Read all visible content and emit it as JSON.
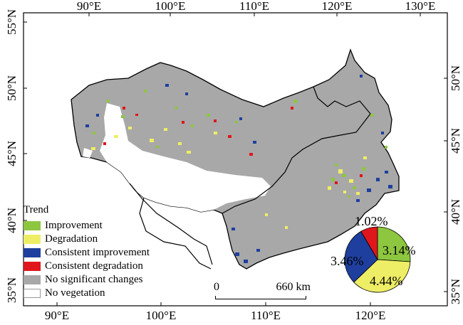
{
  "axes": {
    "top_lon_labels": [
      "90°E",
      "100°E",
      "110°E",
      "120°E",
      "130°E"
    ],
    "bottom_lon_labels": [
      "90°E",
      "100°E",
      "110°E",
      "120°E"
    ],
    "left_lat_labels": [
      "55°N",
      "50°N",
      "45°N",
      "40°N",
      "35°N"
    ],
    "right_lat_labels": [
      "50°N",
      "45°N",
      "40°N",
      "35°N"
    ]
  },
  "legend": {
    "title": "Trend",
    "items": [
      {
        "label": "Improvement",
        "color": "#8dc63f"
      },
      {
        "label": "Degradation",
        "color": "#eeee66"
      },
      {
        "label": "Consistent improvement",
        "color": "#1f3f9e"
      },
      {
        "label": "Consistent degradation",
        "color": "#e0161d"
      },
      {
        "label": "No significant changes",
        "color": "#a8a8a8"
      },
      {
        "label": "No vegetation",
        "color": "#ffffff"
      }
    ]
  },
  "scale_bar": {
    "zero": "0",
    "max": "660 km"
  },
  "chart_data": {
    "type": "pie",
    "slices": [
      {
        "label": "3.14%",
        "value": 3.14,
        "color": "#8dc63f"
      },
      {
        "label": "4.44%",
        "value": 4.44,
        "color": "#eeee66"
      },
      {
        "label": "3.46%",
        "value": 3.46,
        "color": "#1f3f9e"
      },
      {
        "label": "1.02%",
        "value": 1.02,
        "color": "#e0161d"
      }
    ]
  },
  "colors": {
    "no_change": "#a8a8a8",
    "improvement": "#8dc63f",
    "degradation": "#eeee66",
    "consistent_improvement": "#1f3f9e",
    "consistent_degradation": "#e0161d"
  }
}
